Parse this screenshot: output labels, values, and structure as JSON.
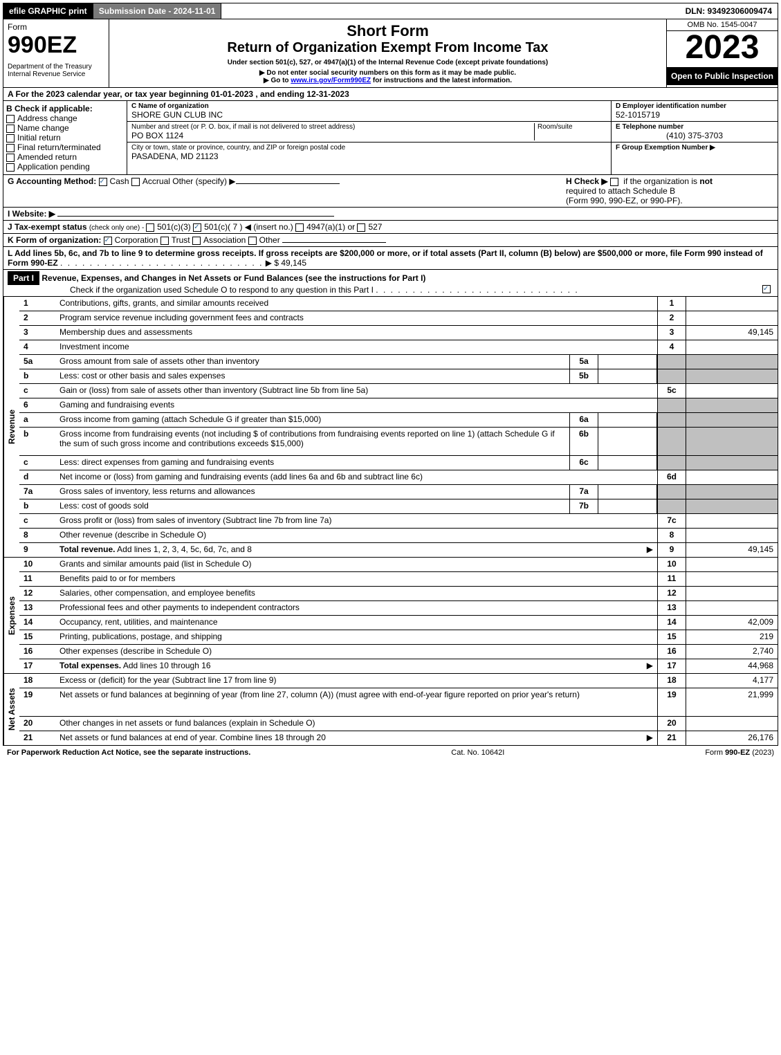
{
  "topbar": {
    "efile": "efile GRAPHIC print",
    "submission": "Submission Date - 2024-11-01",
    "dln": "DLN: 93492306009474"
  },
  "header": {
    "form_label": "Form",
    "form_number": "990EZ",
    "dept": "Department of the Treasury",
    "irs": "Internal Revenue Service",
    "short_form": "Short Form",
    "title": "Return of Organization Exempt From Income Tax",
    "subtitle": "Under section 501(c), 527, or 4947(a)(1) of the Internal Revenue Code (except private foundations)",
    "note1": "▶ Do not enter social security numbers on this form as it may be made public.",
    "note2_pre": "▶ Go to ",
    "note2_link": "www.irs.gov/Form990EZ",
    "note2_post": " for instructions and the latest information.",
    "omb": "OMB No. 1545-0047",
    "year": "2023",
    "open": "Open to Public Inspection"
  },
  "sectionA": "A  For the 2023 calendar year, or tax year beginning 01-01-2023 , and ending 12-31-2023",
  "sectionB": {
    "label": "B  Check if applicable:",
    "opts": [
      "Address change",
      "Name change",
      "Initial return",
      "Final return/terminated",
      "Amended return",
      "Application pending"
    ],
    "c_label": "C Name of organization",
    "c_name": "SHORE GUN CLUB INC",
    "street_label": "Number and street (or P. O. box, if mail is not delivered to street address)",
    "room_label": "Room/suite",
    "street": "PO BOX 1124",
    "city_label": "City or town, state or province, country, and ZIP or foreign postal code",
    "city": "PASADENA, MD  21123",
    "d_label": "D Employer identification number",
    "d_val": "52-1015719",
    "e_label": "E Telephone number",
    "e_val": "(410) 375-3703",
    "f_label": "F Group Exemption Number  ▶"
  },
  "sectionG": {
    "label": "G Accounting Method:",
    "cash": "Cash",
    "accrual": "Accrual",
    "other": "Other (specify) ▶",
    "h_label": "H  Check ▶",
    "h_text": "if the organization is",
    "h_not": "not",
    "h_text2": "required to attach Schedule B",
    "h_text3": "(Form 990, 990-EZ, or 990-PF)."
  },
  "sectionI": "I Website: ▶",
  "sectionJ": {
    "pre": "J Tax-exempt status ",
    "small": "(check only one) - ",
    "o1": "501(c)(3)",
    "o2": "501(c)( 7 ) ◀ (insert no.)",
    "o3": "4947(a)(1) or",
    "o4": "527"
  },
  "sectionK": {
    "label": "K Form of organization:",
    "o1": "Corporation",
    "o2": "Trust",
    "o3": "Association",
    "o4": "Other"
  },
  "sectionL": {
    "text": "L Add lines 5b, 6c, and 7b to line 9 to determine gross receipts. If gross receipts are $200,000 or more, or if total assets (Part II, column (B) below) are $500,000 or more, file Form 990 instead of Form 990-EZ",
    "amt": "▶ $ 49,145"
  },
  "part1": {
    "label": "Part I",
    "title": "Revenue, Expenses, and Changes in Net Assets or Fund Balances (see the instructions for Part I)",
    "check": "Check if the organization used Schedule O to respond to any question in this Part I"
  },
  "labels": {
    "revenue": "Revenue",
    "expenses": "Expenses",
    "netassets": "Net Assets"
  },
  "revenue_lines": [
    {
      "n": "1",
      "d": "Contributions, gifts, grants, and similar amounts received",
      "box": "1",
      "amt": ""
    },
    {
      "n": "2",
      "d": "Program service revenue including government fees and contracts",
      "box": "2",
      "amt": ""
    },
    {
      "n": "3",
      "d": "Membership dues and assessments",
      "box": "3",
      "amt": "49,145"
    },
    {
      "n": "4",
      "d": "Investment income",
      "box": "4",
      "amt": ""
    },
    {
      "n": "5a",
      "d": "Gross amount from sale of assets other than inventory",
      "ibox": "5a",
      "iamt": "",
      "shaded": true
    },
    {
      "n": "b",
      "d": "Less: cost or other basis and sales expenses",
      "ibox": "5b",
      "iamt": "",
      "shaded": true
    },
    {
      "n": "c",
      "d": "Gain or (loss) from sale of assets other than inventory (Subtract line 5b from line 5a)",
      "box": "5c",
      "amt": ""
    },
    {
      "n": "6",
      "d": "Gaming and fundraising events",
      "shaded": true,
      "noright": true
    },
    {
      "n": "a",
      "d": "Gross income from gaming (attach Schedule G if greater than $15,000)",
      "ibox": "6a",
      "iamt": "",
      "shaded": true
    },
    {
      "n": "b",
      "d": "Gross income from fundraising events (not including $                       of contributions from fundraising events reported on line 1) (attach Schedule G if the sum of such gross income and contributions exceeds $15,000)",
      "ibox": "6b",
      "iamt": "",
      "shaded": true,
      "tall": true
    },
    {
      "n": "c",
      "d": "Less: direct expenses from gaming and fundraising events",
      "ibox": "6c",
      "iamt": "",
      "shaded": true
    },
    {
      "n": "d",
      "d": "Net income or (loss) from gaming and fundraising events (add lines 6a and 6b and subtract line 6c)",
      "box": "6d",
      "amt": ""
    },
    {
      "n": "7a",
      "d": "Gross sales of inventory, less returns and allowances",
      "ibox": "7a",
      "iamt": "",
      "shaded": true
    },
    {
      "n": "b",
      "d": "Less: cost of goods sold",
      "ibox": "7b",
      "iamt": "",
      "shaded": true
    },
    {
      "n": "c",
      "d": "Gross profit or (loss) from sales of inventory (Subtract line 7b from line 7a)",
      "box": "7c",
      "amt": ""
    },
    {
      "n": "8",
      "d": "Other revenue (describe in Schedule O)",
      "box": "8",
      "amt": ""
    },
    {
      "n": "9",
      "d": "Total revenue. Add lines 1, 2, 3, 4, 5c, 6d, 7c, and 8",
      "box": "9",
      "amt": "49,145",
      "arrow": true,
      "bold": true
    }
  ],
  "expense_lines": [
    {
      "n": "10",
      "d": "Grants and similar amounts paid (list in Schedule O)",
      "box": "10",
      "amt": ""
    },
    {
      "n": "11",
      "d": "Benefits paid to or for members",
      "box": "11",
      "amt": ""
    },
    {
      "n": "12",
      "d": "Salaries, other compensation, and employee benefits",
      "box": "12",
      "amt": ""
    },
    {
      "n": "13",
      "d": "Professional fees and other payments to independent contractors",
      "box": "13",
      "amt": ""
    },
    {
      "n": "14",
      "d": "Occupancy, rent, utilities, and maintenance",
      "box": "14",
      "amt": "42,009"
    },
    {
      "n": "15",
      "d": "Printing, publications, postage, and shipping",
      "box": "15",
      "amt": "219"
    },
    {
      "n": "16",
      "d": "Other expenses (describe in Schedule O)",
      "box": "16",
      "amt": "2,740"
    },
    {
      "n": "17",
      "d": "Total expenses. Add lines 10 through 16",
      "box": "17",
      "amt": "44,968",
      "arrow": true,
      "bold": true
    }
  ],
  "netasset_lines": [
    {
      "n": "18",
      "d": "Excess or (deficit) for the year (Subtract line 17 from line 9)",
      "box": "18",
      "amt": "4,177"
    },
    {
      "n": "19",
      "d": "Net assets or fund balances at beginning of year (from line 27, column (A)) (must agree with end-of-year figure reported on prior year's return)",
      "box": "19",
      "amt": "21,999",
      "tall": true
    },
    {
      "n": "20",
      "d": "Other changes in net assets or fund balances (explain in Schedule O)",
      "box": "20",
      "amt": ""
    },
    {
      "n": "21",
      "d": "Net assets or fund balances at end of year. Combine lines 18 through 20",
      "box": "21",
      "amt": "26,176",
      "arrow": true
    }
  ],
  "footer": {
    "left": "For Paperwork Reduction Act Notice, see the separate instructions.",
    "mid": "Cat. No. 10642I",
    "right_pre": "Form ",
    "right_bold": "990-EZ",
    "right_post": " (2023)"
  }
}
